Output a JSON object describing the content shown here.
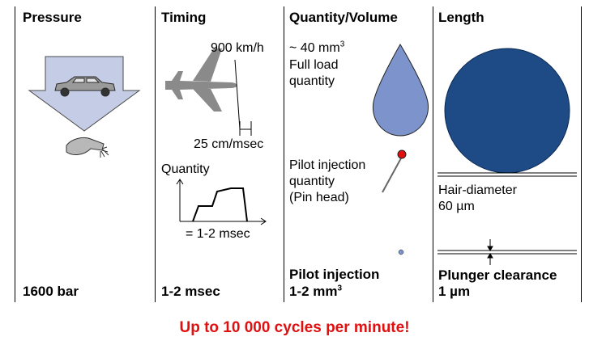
{
  "columns": {
    "pressure": {
      "title": "Pressure",
      "value": "1600 bar"
    },
    "timing": {
      "title": "Timing",
      "speed": "900 km/h",
      "distance": "25 cm/msec",
      "quantity_label": "Quantity",
      "duration_note": "= 1-2 msec",
      "value": "1-2 msec"
    },
    "quantity": {
      "title": "Quantity/Volume",
      "full_load_amount": "~ 40 mm",
      "full_load_exp": "3",
      "full_load_line1": "Full load",
      "full_load_line2": "quantity",
      "pilot_line1": "Pilot injection",
      "pilot_line2": "quantity",
      "pilot_line3": "(Pin head)",
      "value_line1": "Pilot injection",
      "value_line2": "1-2 mm",
      "value_exp": "3"
    },
    "length": {
      "title": "Length",
      "hair_line1": "Hair-diameter",
      "hair_line2": "60 µm",
      "value_line1": "Plunger clearance",
      "value_line2": "1 µm"
    }
  },
  "footer": "Up to 10 000 cycles per minute!",
  "colors": {
    "footer_red": "#e01010",
    "arrow_fill": "#c5cde6",
    "droplet_blue": "#7d93cc",
    "circle_navy": "#1e4a85",
    "airplane_gray": "#8a8a8a",
    "pin_red": "#e01010",
    "dot_blue": "#7d93cc"
  },
  "icons": [
    "pressure-arrow-icon",
    "car-icon",
    "injector-nozzle-icon",
    "airplane-icon",
    "droplet-icon",
    "pin-icon",
    "small-dot-icon",
    "hair-circle-icon"
  ]
}
